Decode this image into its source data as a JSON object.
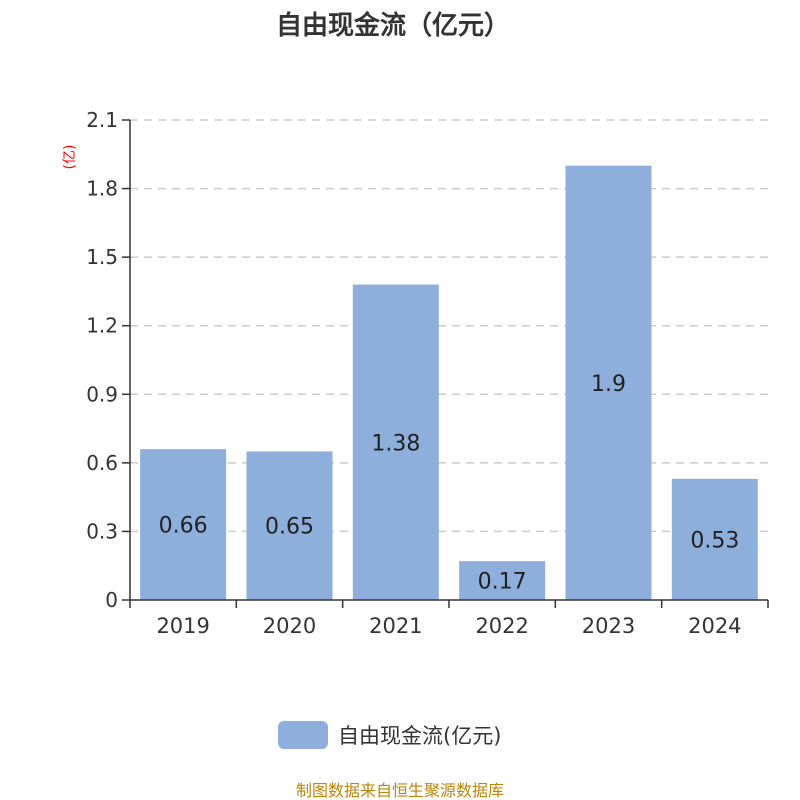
{
  "chart_data": {
    "type": "bar",
    "title": "自由现金流（亿元）",
    "ylabel": "(亿)",
    "categories": [
      "2019",
      "2020",
      "2021",
      "2022",
      "2023",
      "2024"
    ],
    "series": [
      {
        "name": "自由现金流(亿元)",
        "values": [
          0.66,
          0.65,
          1.38,
          0.17,
          1.9,
          0.53
        ],
        "labels": [
          "0.66",
          "0.65",
          "1.38",
          "0.17",
          "1.9",
          "0.53"
        ],
        "color": "#8eaedb"
      }
    ],
    "yticks": [
      "0",
      "0.3",
      "0.6",
      "0.9",
      "1.2",
      "1.5",
      "1.8",
      "2.1"
    ],
    "ylim": [
      0,
      2.1
    ],
    "grid": true,
    "legend_position": "bottom-center"
  },
  "footer": {
    "source": "制图数据来自恒生聚源数据库"
  },
  "colors": {
    "title": "#333333",
    "axis": "#333333",
    "tick_label": "#333333",
    "grid": "#cccccc",
    "ylabel": "#ff0000",
    "source": "#b8860b",
    "data_label": "#222222"
  }
}
